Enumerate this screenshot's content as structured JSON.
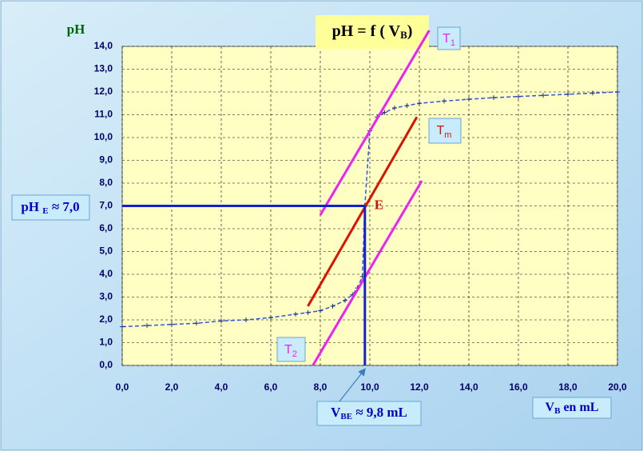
{
  "chart_data": {
    "type": "line",
    "title": {
      "text": "pH = f ( V",
      "sub": "B",
      "end": ")"
    },
    "y_label": "pH",
    "x_label": {
      "text": "V",
      "sub": "B",
      "end": " en mL"
    },
    "xlim": [
      0,
      20
    ],
    "ylim": [
      0,
      14
    ],
    "xticks": [
      {
        "value": 0,
        "label": "0,0"
      },
      {
        "value": 2,
        "label": "2,0"
      },
      {
        "value": 4,
        "label": "4,0"
      },
      {
        "value": 6,
        "label": "6,0"
      },
      {
        "value": 8,
        "label": "8,0"
      },
      {
        "value": 10,
        "label": "10,0"
      },
      {
        "value": 12,
        "label": "12,0"
      },
      {
        "value": 14,
        "label": "14,0"
      },
      {
        "value": 16,
        "label": "16,0"
      },
      {
        "value": 18,
        "label": "18,0"
      },
      {
        "value": 20,
        "label": "20,0"
      }
    ],
    "yticks": [
      {
        "value": 0,
        "label": "0,0"
      },
      {
        "value": 1,
        "label": "1,0"
      },
      {
        "value": 2,
        "label": "2,0"
      },
      {
        "value": 3,
        "label": "3,0"
      },
      {
        "value": 4,
        "label": "4,0"
      },
      {
        "value": 5,
        "label": "5,0"
      },
      {
        "value": 6,
        "label": "6,0"
      },
      {
        "value": 7,
        "label": "7,0"
      },
      {
        "value": 8,
        "label": "8,0"
      },
      {
        "value": 9,
        "label": "9,0"
      },
      {
        "value": 10,
        "label": "10,0"
      },
      {
        "value": 11,
        "label": "11,0"
      },
      {
        "value": 12,
        "label": "12,0"
      },
      {
        "value": 13,
        "label": "13,0"
      },
      {
        "value": 14,
        "label": "14,0"
      }
    ],
    "grid": true,
    "series": [
      {
        "color": "#3355dd",
        "x": [
          0,
          1,
          2,
          3,
          4,
          5,
          6,
          7,
          7.5,
          8,
          8.5,
          9,
          9.3,
          9.5,
          9.7,
          9.8,
          10,
          10.3,
          10.6,
          11,
          11.5,
          12,
          13,
          14,
          15,
          16,
          17,
          18,
          19,
          20
        ],
        "values": [
          1.7,
          1.75,
          1.8,
          1.85,
          1.95,
          2.0,
          2.1,
          2.25,
          2.32,
          2.4,
          2.6,
          2.85,
          3.1,
          3.4,
          3.9,
          7.0,
          10.3,
          10.9,
          11.1,
          11.3,
          11.4,
          11.5,
          11.6,
          11.68,
          11.75,
          11.8,
          11.85,
          11.9,
          11.95,
          12.0
        ]
      }
    ],
    "tangents": [
      {
        "label": "T",
        "sub": "1",
        "color": "#ee22ee",
        "x": [
          8.0,
          12.4
        ],
        "values": [
          6.6,
          14.7
        ]
      },
      {
        "label": "T",
        "sub": "m",
        "color": "#dd1100",
        "x": [
          7.5,
          11.9
        ],
        "values": [
          2.6,
          10.9
        ]
      },
      {
        "label": "T",
        "sub": "2",
        "color": "#ee22ee",
        "x": [
          7.7,
          12.1
        ],
        "values": [
          0,
          8.1
        ]
      }
    ],
    "equivalence": {
      "x": 9.8,
      "y": 7.0,
      "label": "E",
      "color": "#1122cc"
    },
    "ph_label": {
      "text": "pH ",
      "sub": "E",
      "end": " ≈  7,0"
    },
    "v_label": {
      "text": "V",
      "sub": "BE",
      "end": " ≈ 9,8 mL"
    }
  }
}
